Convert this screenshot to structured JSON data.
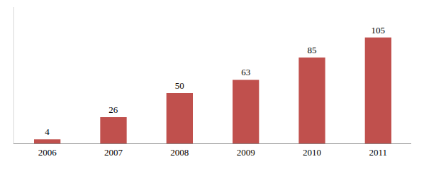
{
  "chart_data": {
    "type": "bar",
    "categories": [
      "2006",
      "2007",
      "2008",
      "2009",
      "2010",
      "2011"
    ],
    "values": [
      4,
      26,
      50,
      63,
      85,
      105
    ],
    "color": "#c0504d",
    "ylim": [
      0,
      135
    ],
    "yticks": [],
    "grid": false,
    "data_labels": true,
    "tick_labels": "x"
  }
}
